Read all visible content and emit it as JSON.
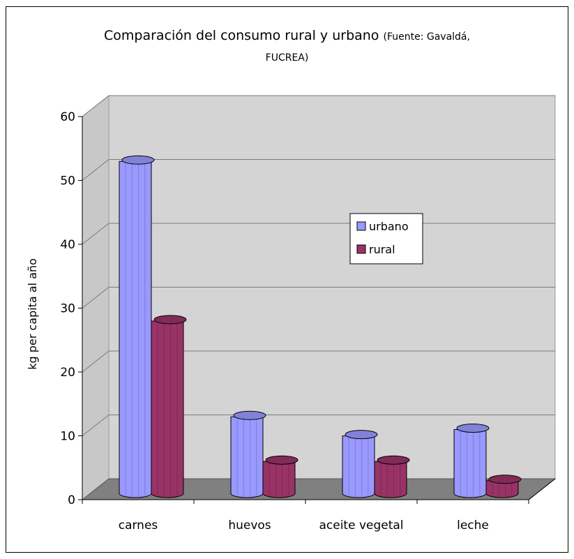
{
  "chart_data": {
    "type": "bar",
    "title": "Comparación del consumo rural y urbano",
    "subtitle": "(Fuente: Gavaldá, FUCREA)",
    "subtitle_line1": "(Fuente: Gavaldá,",
    "subtitle_line2": "FUCREA)",
    "xlabel": "",
    "ylabel": "kg per capita al año",
    "ylim": [
      0,
      60
    ],
    "yticks": [
      0,
      10,
      20,
      30,
      40,
      50,
      60
    ],
    "grid": true,
    "legend_position": "center-right",
    "categories": [
      "carnes",
      "huevos",
      "aceite vegetal",
      "leche"
    ],
    "series": [
      {
        "name": "urbano",
        "values": [
          52,
          12,
          9,
          10
        ],
        "color": "#9999ff"
      },
      {
        "name": "rural",
        "values": [
          27,
          5,
          5,
          2
        ],
        "color": "#993366"
      }
    ]
  }
}
